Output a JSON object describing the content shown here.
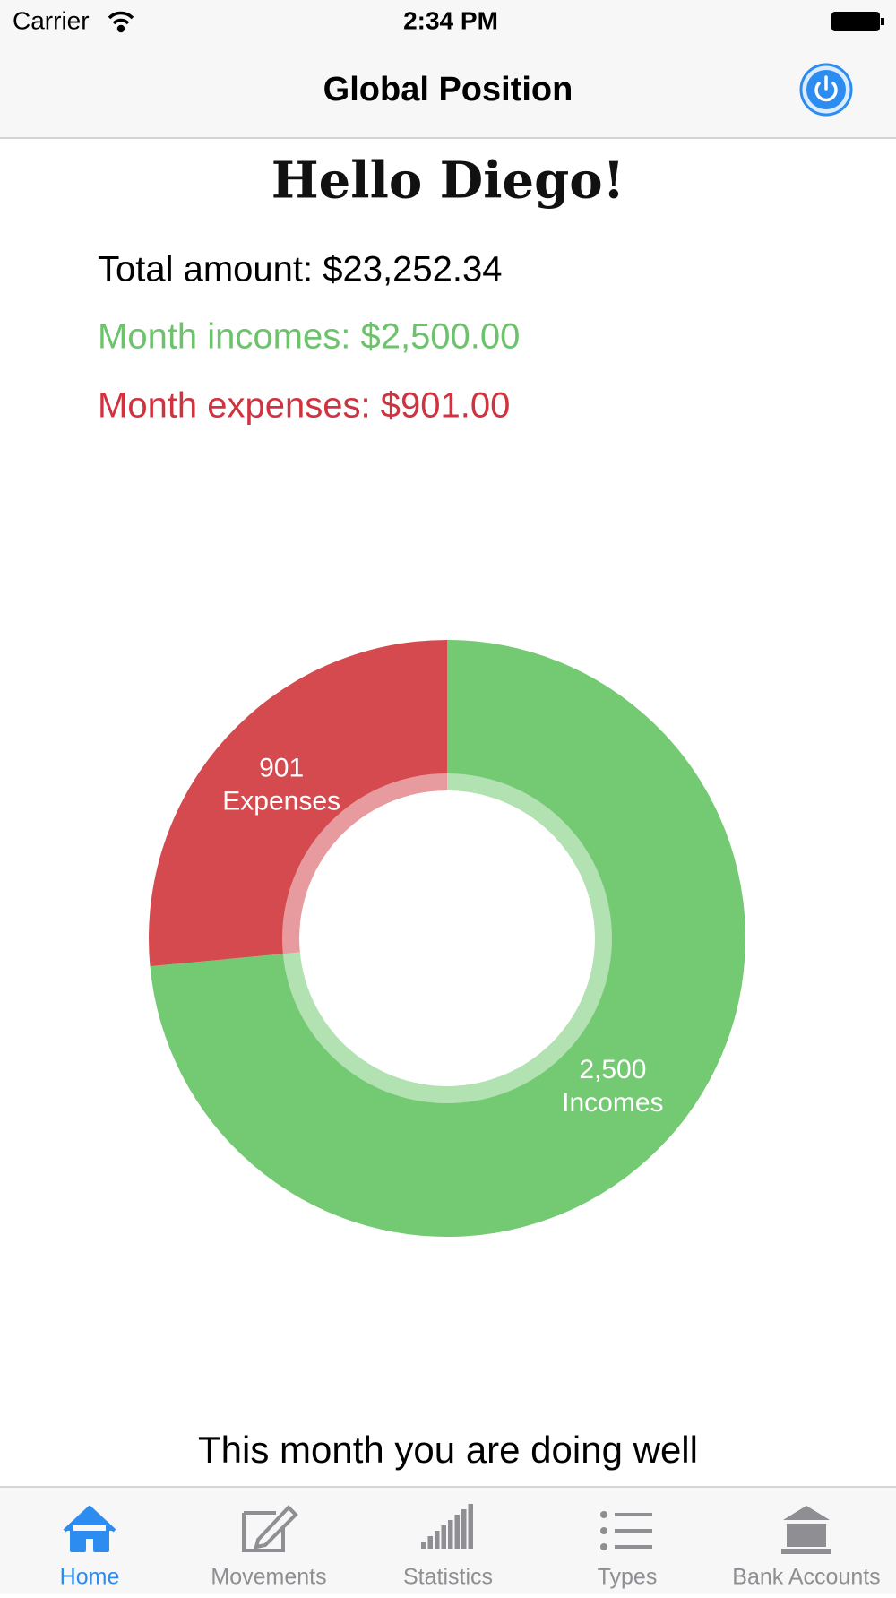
{
  "status_bar": {
    "carrier": "Carrier",
    "time": "2:34 PM"
  },
  "nav": {
    "title": "Global Position"
  },
  "greeting": "Hello Diego!",
  "summary": {
    "total": "Total amount: $23,252.34",
    "incomes": "Month incomes: $2,500.00",
    "expenses": "Month expenses: $901.00"
  },
  "chart_data": {
    "type": "pie",
    "donut": true,
    "categories": [
      "Incomes",
      "Expenses"
    ],
    "values": [
      2500,
      901
    ],
    "value_labels": [
      "2,500",
      "901"
    ],
    "colors": [
      "#74c973",
      "#d44a4f"
    ]
  },
  "message": "This month you are doing well",
  "tabs": [
    {
      "label": "Home",
      "active": true
    },
    {
      "label": "Movements",
      "active": false
    },
    {
      "label": "Statistics",
      "active": false
    },
    {
      "label": "Types",
      "active": false
    },
    {
      "label": "Bank Accounts",
      "active": false
    }
  ]
}
